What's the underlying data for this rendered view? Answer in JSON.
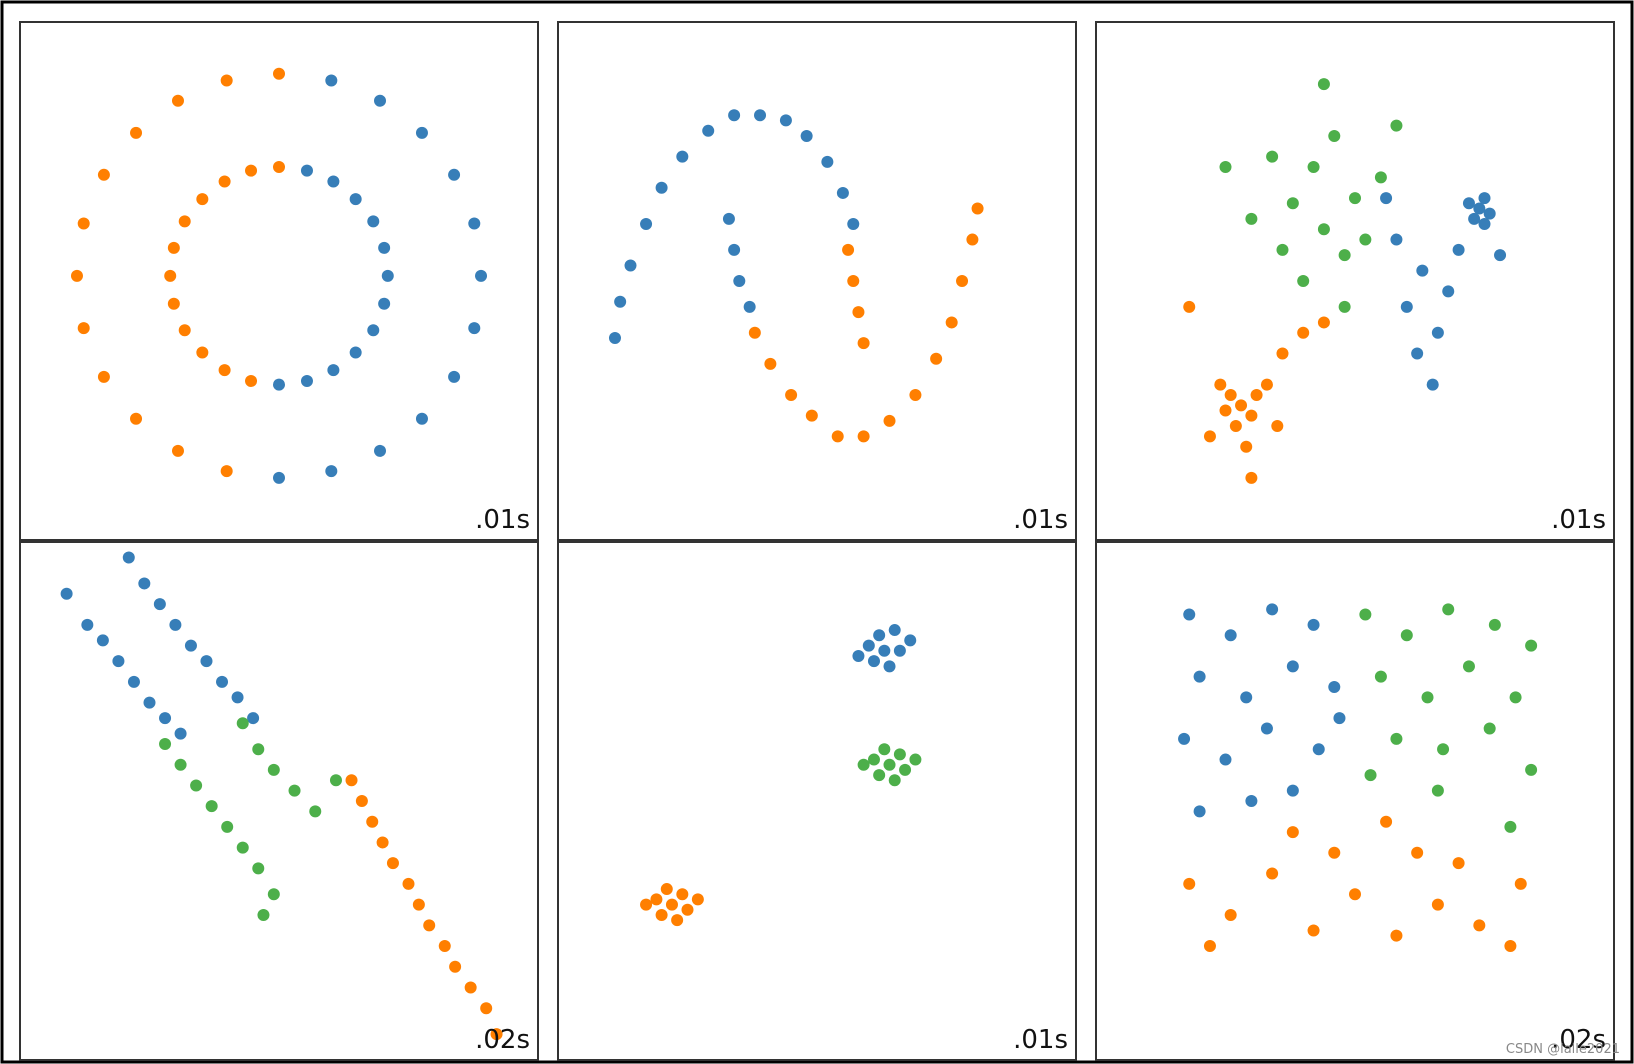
{
  "chart_data": [
    {
      "type": "scatter",
      "annotation": ".01s",
      "xlim": [
        0,
        100
      ],
      "ylim": [
        0,
        100
      ],
      "series": [
        {
          "color": "#ff7f00",
          "x": [
            50,
            39.9,
            30.5,
            22.4,
            16.2,
            12.3,
            11,
            12.3,
            16.2,
            22.4,
            30.5,
            39.9,
            50,
            44.6,
            39.5,
            35.2,
            31.8,
            29.7,
            29,
            29.7,
            31.8,
            35.2,
            39.5,
            44.6
          ],
          "values": [
            90,
            88.7,
            84.8,
            78.6,
            70.5,
            61.1,
            51,
            40.9,
            31.5,
            23.4,
            17.2,
            13.3,
            72,
            71.3,
            69.2,
            65.8,
            61.5,
            56.4,
            51,
            45.6,
            40.5,
            36.2,
            32.8,
            30.7
          ]
        },
        {
          "color": "#377eb8",
          "x": [
            50,
            60.1,
            69.5,
            77.6,
            83.8,
            87.7,
            89,
            87.7,
            83.8,
            77.6,
            69.5,
            60.1,
            50,
            55.4,
            60.5,
            64.8,
            68.2,
            70.3,
            71,
            70.3,
            68.2,
            64.8,
            60.5,
            55.4
          ],
          "values": [
            12,
            13.3,
            17.2,
            23.4,
            31.5,
            40.9,
            51,
            61.1,
            70.5,
            78.6,
            84.8,
            88.7,
            30,
            30.7,
            32.8,
            36.2,
            40.5,
            45.6,
            51,
            56.4,
            61.5,
            65.8,
            69.2,
            71.3
          ]
        }
      ]
    },
    {
      "type": "scatter",
      "annotation": ".01s",
      "xlim": [
        0,
        100
      ],
      "ylim": [
        0,
        100
      ],
      "series": [
        {
          "color": "#377eb8",
          "x": [
            11,
            12,
            14,
            17,
            20,
            24,
            29,
            34,
            39,
            44,
            48,
            52,
            55,
            57,
            33,
            34,
            35,
            37
          ],
          "values": [
            39,
            46,
            53,
            61,
            68,
            74,
            79,
            82,
            82,
            81,
            78,
            73,
            67,
            61,
            62,
            56,
            50,
            45
          ]
        },
        {
          "color": "#ff7f00",
          "x": [
            38,
            41,
            45,
            49,
            54,
            59,
            64,
            69,
            73,
            76,
            78,
            80,
            81,
            56,
            57,
            58,
            59
          ],
          "values": [
            40,
            34,
            28,
            24,
            20,
            20,
            23,
            28,
            35,
            42,
            50,
            58,
            64,
            56,
            50,
            44,
            38
          ]
        }
      ]
    },
    {
      "type": "scatter",
      "annotation": ".01s",
      "xlim": [
        0,
        100
      ],
      "ylim": [
        0,
        100
      ],
      "series": [
        {
          "color": "#4daf4a",
          "x": [
            44,
            38,
            50,
            42,
            48,
            36,
            52,
            40,
            46,
            34,
            55,
            30,
            44,
            58,
            25,
            48
          ],
          "values": [
            60,
            65,
            66,
            72,
            55,
            56,
            58,
            50,
            78,
            74,
            70,
            62,
            88,
            80,
            72,
            45
          ]
        },
        {
          "color": "#377eb8",
          "x": [
            74,
            75,
            73,
            76,
            72,
            75,
            63,
            60,
            66,
            58,
            68,
            62,
            70,
            65,
            56,
            78
          ],
          "values": [
            64,
            66,
            62,
            63,
            65,
            61,
            52,
            45,
            40,
            58,
            48,
            36,
            56,
            30,
            66,
            55
          ]
        },
        {
          "color": "#ff7f00",
          "x": [
            28,
            26,
            30,
            27,
            31,
            25,
            29,
            24,
            33,
            22,
            36,
            40,
            44,
            18,
            30,
            35
          ],
          "values": [
            26,
            28,
            24,
            22,
            28,
            25,
            18,
            30,
            30,
            20,
            36,
            40,
            42,
            45,
            12,
            22
          ]
        }
      ]
    },
    {
      "type": "scatter",
      "annotation": ".02s",
      "xlim": [
        0,
        100
      ],
      "ylim": [
        0,
        100
      ],
      "series": [
        {
          "color": "#377eb8",
          "x": [
            21,
            24,
            27,
            30,
            33,
            36,
            39,
            42,
            45,
            16,
            19,
            22,
            25,
            28,
            31,
            9,
            13
          ],
          "values": [
            97,
            92,
            88,
            84,
            80,
            77,
            73,
            70,
            66,
            81,
            77,
            73,
            69,
            66,
            63,
            90,
            84
          ]
        },
        {
          "color": "#4daf4a",
          "x": [
            28,
            31,
            34,
            37,
            40,
            43,
            46,
            49,
            47,
            43,
            46,
            49,
            53,
            57,
            61
          ],
          "values": [
            61,
            57,
            53,
            49,
            45,
            41,
            37,
            32,
            28,
            65,
            60,
            56,
            52,
            48,
            54
          ]
        },
        {
          "color": "#ff7f00",
          "x": [
            64,
            66,
            68,
            70,
            72,
            75,
            77,
            79,
            82,
            84,
            87,
            90,
            92
          ],
          "values": [
            54,
            50,
            46,
            42,
            38,
            34,
            30,
            26,
            22,
            18,
            14,
            10,
            5
          ]
        }
      ]
    },
    {
      "type": "scatter",
      "annotation": ".01s",
      "xlim": [
        0,
        100
      ],
      "ylim": [
        0,
        100
      ],
      "series": [
        {
          "color": "#377eb8",
          "x": [
            63,
            60,
            66,
            62,
            64,
            58,
            68,
            61,
            65
          ],
          "values": [
            79,
            80,
            79,
            82,
            76,
            78,
            81,
            77,
            83
          ]
        },
        {
          "color": "#4daf4a",
          "x": [
            64,
            61,
            67,
            63,
            65,
            59,
            69,
            62,
            66
          ],
          "values": [
            57,
            58,
            56,
            60,
            54,
            57,
            58,
            55,
            59
          ]
        },
        {
          "color": "#ff7f00",
          "x": [
            22,
            19,
            25,
            21,
            23,
            17,
            27,
            20,
            24
          ],
          "values": [
            30,
            31,
            29,
            33,
            27,
            30,
            31,
            28,
            32
          ]
        }
      ]
    },
    {
      "type": "scatter",
      "annotation": ".02s",
      "xlim": [
        0,
        100
      ],
      "ylim": [
        0,
        100
      ],
      "series": [
        {
          "color": "#377eb8",
          "x": [
            18,
            26,
            34,
            42,
            20,
            29,
            38,
            46,
            17,
            25,
            33,
            43,
            20,
            30,
            38,
            47
          ],
          "values": [
            86,
            82,
            87,
            84,
            74,
            70,
            76,
            72,
            62,
            58,
            64,
            60,
            48,
            50,
            52,
            66
          ]
        },
        {
          "color": "#4daf4a",
          "x": [
            52,
            60,
            68,
            77,
            84,
            55,
            64,
            72,
            81,
            58,
            67,
            76,
            84,
            66,
            80,
            53
          ],
          "values": [
            86,
            82,
            87,
            84,
            80,
            74,
            70,
            76,
            70,
            62,
            60,
            64,
            56,
            52,
            45,
            55
          ]
        },
        {
          "color": "#ff7f00",
          "x": [
            18,
            26,
            34,
            42,
            50,
            58,
            66,
            74,
            82,
            22,
            38,
            46,
            56,
            62,
            70,
            80
          ],
          "values": [
            34,
            28,
            36,
            25,
            32,
            24,
            30,
            26,
            34,
            22,
            44,
            40,
            46,
            40,
            38,
            22
          ]
        }
      ]
    }
  ],
  "credit": "CSDN @lalle2021"
}
